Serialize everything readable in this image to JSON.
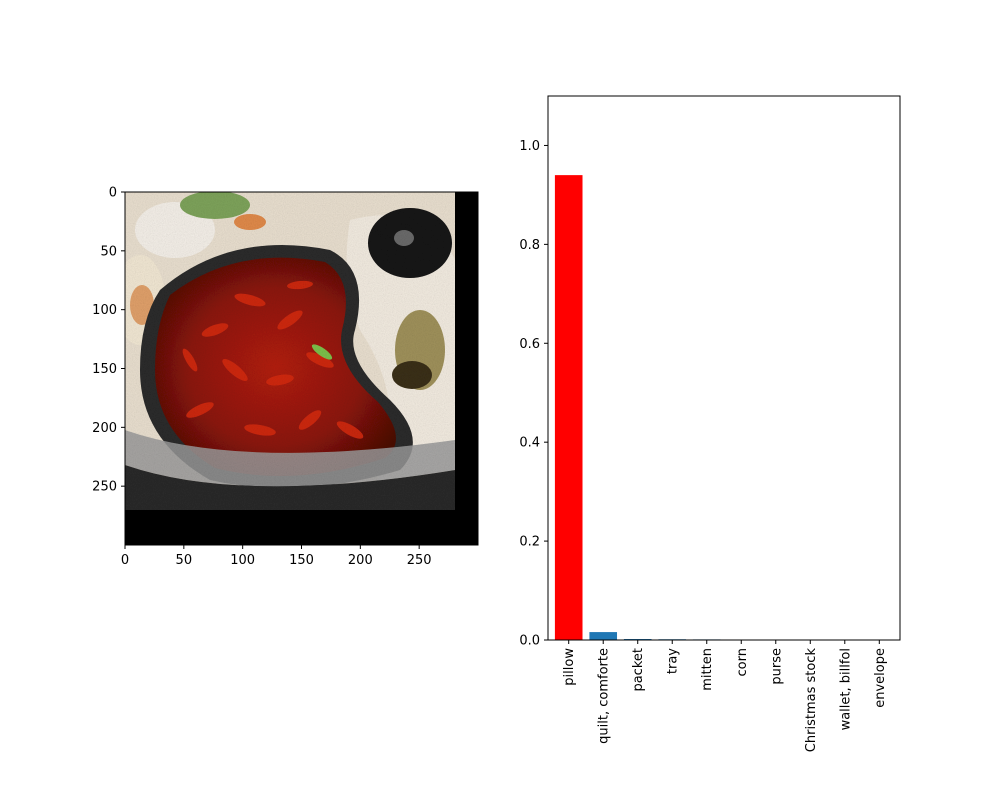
{
  "figure": {
    "background": "#ffffff"
  },
  "image_panel": {
    "description_icon": "food-photo-icon",
    "x_ticks": [
      "0",
      "50",
      "100",
      "150",
      "200",
      "250"
    ],
    "y_ticks": [
      "0",
      "50",
      "100",
      "150",
      "200",
      "250"
    ],
    "x_range": [
      0,
      300
    ],
    "y_range": [
      0,
      300
    ],
    "content_extent": [
      0,
      280,
      0,
      270
    ],
    "colors": {
      "pad": "#000000",
      "broth": "#7a1208",
      "chili": "#c8250f",
      "pot_rim": "#3a3a3a",
      "plate": "#efe6d6",
      "ladle": "#141414"
    }
  },
  "chart_data": {
    "type": "bar",
    "categories": [
      "pillow",
      "quilt, comforte",
      "packet",
      "tray",
      "mitten",
      "corn",
      "purse",
      "Christmas stock",
      "wallet, billfol",
      "envelope"
    ],
    "values": [
      0.94,
      0.016,
      0.002,
      0.0015,
      0.0012,
      0.001,
      0.001,
      0.0008,
      0.0005,
      0.0004
    ],
    "colors": [
      "#ff0000",
      "#1f77b4",
      "#1f77b4",
      "#1f77b4",
      "#1f77b4",
      "#1f77b4",
      "#1f77b4",
      "#1f77b4",
      "#1f77b4",
      "#1f77b4"
    ],
    "ylim": [
      0,
      1.1
    ],
    "y_ticks": [
      "0.0",
      "0.2",
      "0.4",
      "0.6",
      "0.8",
      "1.0"
    ],
    "grid": false,
    "legend": "none",
    "title": "",
    "xlabel": "",
    "ylabel": ""
  }
}
